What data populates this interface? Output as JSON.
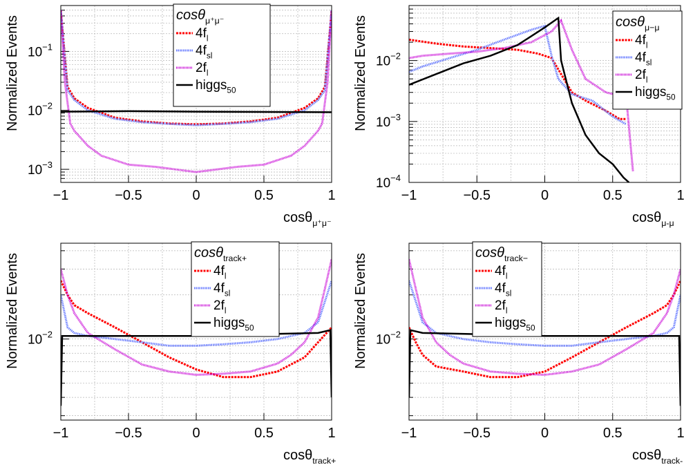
{
  "colors": {
    "4f_l": "#ff0000",
    "4f_sl": "#6a7dff",
    "2f_l": "#c800d6",
    "higgs": "#000000",
    "grid": "#b4b4b4"
  },
  "chart_data": [
    {
      "type": "line",
      "panel": "top-left",
      "ylabel": "Normalized Events",
      "xlabel": "cosθ_{μ⁺μ⁻}",
      "xlabel_main": "cosθ",
      "xlabel_sub": "μ⁺μ⁻",
      "legend_title_main": "cosθ",
      "legend_title_sub": "μ⁺μ⁻",
      "xlim": [
        -1,
        1
      ],
      "ylim": [
        0.0006,
        0.6
      ],
      "log_y": true,
      "grid": true,
      "legend_position": "top-center",
      "x_ticks": [
        "−1",
        "−0.5",
        "0",
        "0.5",
        "1"
      ],
      "x_tick_values": [
        -1,
        -0.5,
        0,
        0.5,
        1
      ],
      "y_ticks": [
        {
          "value": 0.1,
          "base": "10",
          "exp": "−1"
        },
        {
          "value": 0.01,
          "base": "10",
          "exp": "−2"
        },
        {
          "value": 0.001,
          "base": "10",
          "exp": "−3"
        }
      ],
      "series": [
        {
          "key": "4f_l",
          "name_main": "4f",
          "name_sub": "l",
          "x": [
            -1,
            -0.95,
            -0.9,
            -0.8,
            -0.6,
            -0.4,
            -0.2,
            0,
            0.2,
            0.4,
            0.6,
            0.8,
            0.9,
            0.95,
            1
          ],
          "y": [
            0.5,
            0.025,
            0.016,
            0.011,
            0.0075,
            0.0065,
            0.006,
            0.0058,
            0.006,
            0.0065,
            0.0075,
            0.011,
            0.016,
            0.025,
            0.5
          ]
        },
        {
          "key": "4f_sl",
          "name_main": "4f",
          "name_sub": "sl",
          "x": [
            -1,
            -0.95,
            -0.9,
            -0.8,
            -0.6,
            -0.4,
            -0.2,
            0,
            0.2,
            0.4,
            0.6,
            0.8,
            0.9,
            0.95,
            1
          ],
          "y": [
            0.5,
            0.022,
            0.015,
            0.01,
            0.0072,
            0.0063,
            0.0059,
            0.0056,
            0.0059,
            0.0063,
            0.0072,
            0.01,
            0.015,
            0.022,
            0.5
          ]
        },
        {
          "key": "2f_l",
          "name_main": "2f",
          "name_sub": "l",
          "x": [
            -1,
            -0.97,
            -0.93,
            -0.9,
            -0.8,
            -0.7,
            -0.5,
            -0.3,
            0,
            0.3,
            0.5,
            0.7,
            0.8,
            0.9,
            0.93,
            0.97,
            1
          ],
          "y": [
            0.5,
            0.03,
            0.006,
            0.0045,
            0.0025,
            0.0017,
            0.0012,
            0.0011,
            0.0009,
            0.0011,
            0.0012,
            0.0017,
            0.0025,
            0.0045,
            0.006,
            0.03,
            0.5
          ]
        },
        {
          "key": "higgs",
          "name_main": "higgs",
          "name_sub": "50",
          "x": [
            -1,
            -0.5,
            0,
            0.5,
            1
          ],
          "y": [
            0.0095,
            0.0097,
            0.0095,
            0.0094,
            0.0093
          ]
        }
      ]
    },
    {
      "type": "line",
      "panel": "top-right",
      "ylabel": "Normalized Events",
      "xlabel": "cosθ_{μ-μ}",
      "xlabel_main": "cosθ",
      "xlabel_sub": "μ-μ",
      "legend_title_main": "cosθ",
      "legend_title_sub": "μ−μ",
      "xlim": [
        -1,
        1
      ],
      "ylim": [
        0.0001,
        0.08
      ],
      "log_y": true,
      "grid": true,
      "legend_position": "top-right",
      "x_ticks": [
        "−1",
        "−0.5",
        "0",
        "0.5",
        "1"
      ],
      "x_tick_values": [
        -1,
        -0.5,
        0,
        0.5,
        1
      ],
      "y_ticks": [
        {
          "value": 0.01,
          "base": "10",
          "exp": "−2"
        },
        {
          "value": 0.001,
          "base": "10",
          "exp": "−3"
        },
        {
          "value": 0.0001,
          "base": "10",
          "exp": "−4"
        }
      ],
      "series": [
        {
          "key": "4f_l",
          "name_main": "4f",
          "name_sub": "l",
          "x": [
            -1,
            -0.8,
            -0.6,
            -0.4,
            -0.2,
            -0.05,
            0.05,
            0.12,
            0.2,
            0.3,
            0.45,
            0.55,
            0.6
          ],
          "y": [
            0.022,
            0.019,
            0.017,
            0.016,
            0.015,
            0.013,
            0.011,
            0.006,
            0.003,
            0.0022,
            0.0015,
            0.0011,
            0.0011
          ]
        },
        {
          "key": "4f_sl",
          "name_main": "4f",
          "name_sub": "sl",
          "x": [
            -1,
            -0.9,
            -0.7,
            -0.5,
            -0.3,
            -0.1,
            0.0,
            0.05,
            0.1,
            0.2,
            0.35,
            0.5,
            0.6
          ],
          "y": [
            0.0065,
            0.008,
            0.011,
            0.015,
            0.022,
            0.032,
            0.037,
            0.012,
            0.005,
            0.0028,
            0.0022,
            0.0012,
            0.0009
          ]
        },
        {
          "key": "2f_l",
          "name_main": "2f",
          "name_sub": "l",
          "x": [
            -1,
            -0.9,
            -0.7,
            -0.5,
            -0.3,
            -0.1,
            0.05,
            0.12,
            0.2,
            0.3,
            0.45,
            0.6,
            0.65
          ],
          "y": [
            0.011,
            0.012,
            0.013,
            0.014,
            0.016,
            0.02,
            0.03,
            0.045,
            0.015,
            0.005,
            0.003,
            0.0025,
            0.00015
          ]
        },
        {
          "key": "higgs",
          "name_main": "higgs",
          "name_sub": "50",
          "x": [
            -1,
            -0.8,
            -0.6,
            -0.4,
            -0.2,
            0.0,
            0.1,
            0.12,
            0.2,
            0.3,
            0.4,
            0.5,
            0.58,
            0.62
          ],
          "y": [
            0.004,
            0.006,
            0.009,
            0.012,
            0.018,
            0.035,
            0.05,
            0.01,
            0.002,
            0.0006,
            0.0003,
            0.0002,
            0.00012,
            0.0001
          ]
        }
      ]
    },
    {
      "type": "line",
      "panel": "bottom-left",
      "ylabel": "Normalized Events",
      "xlabel": "cosθ_{track+}",
      "xlabel_main": "cosθ",
      "xlabel_sub": "track+",
      "legend_title_main": "cosθ",
      "legend_title_sub": "track+",
      "xlim": [
        -1,
        1
      ],
      "ylim": [
        0.0028,
        0.045
      ],
      "log_y": true,
      "grid": true,
      "legend_position": "top-center",
      "x_ticks": [
        "−1",
        "−0.5",
        "0",
        "0.5",
        "1"
      ],
      "x_tick_values": [
        -1,
        -0.5,
        0,
        0.5,
        1
      ],
      "y_ticks": [
        {
          "value": 0.01,
          "base": "10",
          "exp": "−2"
        }
      ],
      "series": [
        {
          "key": "4f_l",
          "name_main": "4f",
          "name_sub": "l",
          "x": [
            -1,
            -0.95,
            -0.9,
            -0.8,
            -0.6,
            -0.4,
            -0.2,
            0,
            0.2,
            0.4,
            0.6,
            0.8,
            0.9,
            1
          ],
          "y": [
            0.025,
            0.02,
            0.017,
            0.015,
            0.012,
            0.0095,
            0.0075,
            0.0062,
            0.0055,
            0.0055,
            0.006,
            0.0075,
            0.0095,
            0.012
          ]
        },
        {
          "key": "4f_sl",
          "name_main": "4f",
          "name_sub": "sl",
          "x": [
            -1,
            -0.95,
            -0.9,
            -0.8,
            -0.6,
            -0.4,
            -0.2,
            0,
            0.2,
            0.4,
            0.6,
            0.8,
            0.9,
            1
          ],
          "y": [
            0.02,
            0.012,
            0.011,
            0.0105,
            0.01,
            0.0095,
            0.009,
            0.009,
            0.0092,
            0.0095,
            0.01,
            0.011,
            0.013,
            0.025
          ]
        },
        {
          "key": "2f_l",
          "name_main": "2f",
          "name_sub": "l",
          "x": [
            -1,
            -0.95,
            -0.9,
            -0.8,
            -0.6,
            -0.4,
            -0.2,
            0,
            0.2,
            0.4,
            0.6,
            0.7,
            0.8,
            0.9,
            0.95,
            1
          ],
          "y": [
            0.03,
            0.02,
            0.015,
            0.011,
            0.0085,
            0.0067,
            0.006,
            0.0057,
            0.0058,
            0.006,
            0.0068,
            0.0078,
            0.0095,
            0.014,
            0.022,
            0.035
          ]
        },
        {
          "key": "higgs",
          "name_main": "higgs",
          "name_sub": "50",
          "x": [
            -1,
            -0.99,
            -0.9,
            -0.5,
            0,
            0.5,
            0.9,
            0.99,
            1
          ],
          "y": [
            0.0035,
            0.0105,
            0.0105,
            0.0105,
            0.0105,
            0.0108,
            0.011,
            0.0115,
            0.004
          ]
        }
      ]
    },
    {
      "type": "line",
      "panel": "bottom-right",
      "ylabel": "Normalized Events",
      "xlabel": "cosθ_{track-}",
      "xlabel_main": "cosθ",
      "xlabel_sub": "track-",
      "legend_title_main": "cosθ",
      "legend_title_sub": "track−",
      "xlim": [
        -1,
        1
      ],
      "ylim": [
        0.0028,
        0.045
      ],
      "log_y": true,
      "grid": true,
      "legend_position": "top-center",
      "x_ticks": [
        "−1",
        "−0.5",
        "0",
        "0.5",
        "1"
      ],
      "x_tick_values": [
        -1,
        -0.5,
        0,
        0.5,
        1
      ],
      "y_ticks": [
        {
          "value": 0.01,
          "base": "10",
          "exp": "−2"
        }
      ],
      "series": [
        {
          "key": "4f_l",
          "name_main": "4f",
          "name_sub": "l",
          "x": [
            -1,
            -0.95,
            -0.9,
            -0.8,
            -0.6,
            -0.4,
            -0.2,
            0,
            0.2,
            0.4,
            0.6,
            0.8,
            0.9,
            0.95,
            1
          ],
          "y": [
            0.012,
            0.0095,
            0.0078,
            0.0065,
            0.006,
            0.0055,
            0.0055,
            0.006,
            0.0075,
            0.0095,
            0.012,
            0.015,
            0.017,
            0.02,
            0.025
          ]
        },
        {
          "key": "4f_sl",
          "name_main": "4f",
          "name_sub": "sl",
          "x": [
            -1,
            -0.9,
            -0.8,
            -0.6,
            -0.4,
            -0.2,
            0,
            0.2,
            0.4,
            0.6,
            0.8,
            0.9,
            0.95,
            1
          ],
          "y": [
            0.025,
            0.013,
            0.011,
            0.01,
            0.0095,
            0.0092,
            0.009,
            0.009,
            0.0095,
            0.01,
            0.0105,
            0.011,
            0.012,
            0.02
          ]
        },
        {
          "key": "2f_l",
          "name_main": "2f",
          "name_sub": "l",
          "x": [
            -1,
            -0.95,
            -0.9,
            -0.8,
            -0.7,
            -0.6,
            -0.4,
            -0.2,
            0,
            0.2,
            0.4,
            0.6,
            0.8,
            0.9,
            0.95,
            1
          ],
          "y": [
            0.035,
            0.022,
            0.014,
            0.0095,
            0.0078,
            0.0068,
            0.006,
            0.0058,
            0.0057,
            0.006,
            0.0067,
            0.0085,
            0.011,
            0.015,
            0.02,
            0.03
          ]
        },
        {
          "key": "higgs",
          "name_main": "higgs",
          "name_sub": "50",
          "x": [
            -1,
            -0.99,
            -0.9,
            -0.5,
            0,
            0.5,
            0.9,
            0.99,
            1
          ],
          "y": [
            0.004,
            0.0115,
            0.011,
            0.0108,
            0.0105,
            0.0105,
            0.0105,
            0.0105,
            0.0035
          ]
        }
      ]
    }
  ]
}
